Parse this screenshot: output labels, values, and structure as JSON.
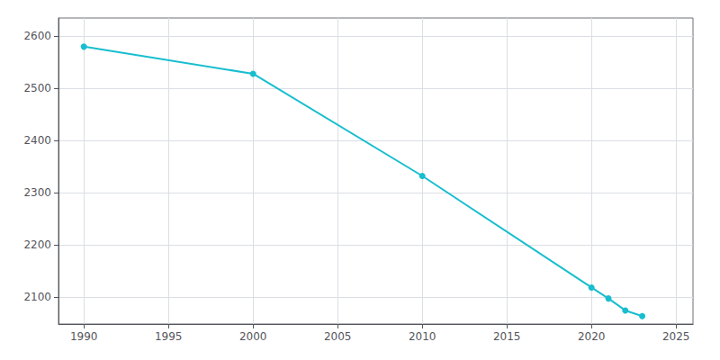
{
  "chart_data": {
    "type": "line",
    "x": [
      1990,
      2000,
      2010,
      2020,
      2021,
      2022,
      2023
    ],
    "values": [
      2580,
      2528,
      2332,
      2118,
      2097,
      2074,
      2063
    ],
    "color": "#17BECF",
    "marker": "circle",
    "xlim": [
      1988.5,
      2026
    ],
    "ylim": [
      2048,
      2635
    ],
    "xticks": [
      1990,
      1995,
      2000,
      2005,
      2010,
      2015,
      2020,
      2025
    ],
    "yticks": [
      2100,
      2200,
      2300,
      2400,
      2500,
      2600
    ],
    "grid": true
  }
}
